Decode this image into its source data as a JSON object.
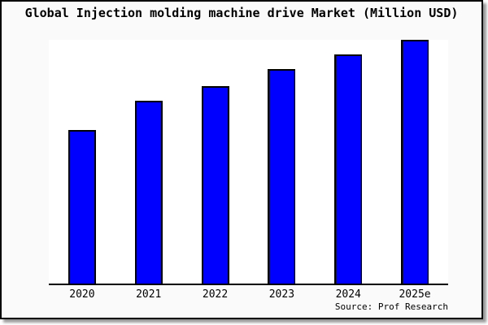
{
  "chart_data": {
    "type": "bar",
    "title": "Global Injection molding machine drive Market (Million USD)",
    "categories": [
      "2020",
      "2021",
      "2022",
      "2023",
      "2024",
      "2025e"
    ],
    "values": [
      63,
      75,
      81,
      88,
      94,
      100
    ],
    "values_note": "No y-axis scale or data labels are shown in the image; values are relative bar heights as percent of the tallest bar (2025e = 100).",
    "xlabel": "",
    "ylabel": "",
    "y_axis_visible": false,
    "gridlines": false,
    "legend_visible": false,
    "source_annotation": "Source: Prof Research",
    "colors": {
      "bar_fill": "#0000ff",
      "bar_border": "#000000",
      "plot_background": "#ffffff",
      "chart_background": "#fafafa",
      "frame_border": "#000000",
      "text": "#000000"
    }
  }
}
